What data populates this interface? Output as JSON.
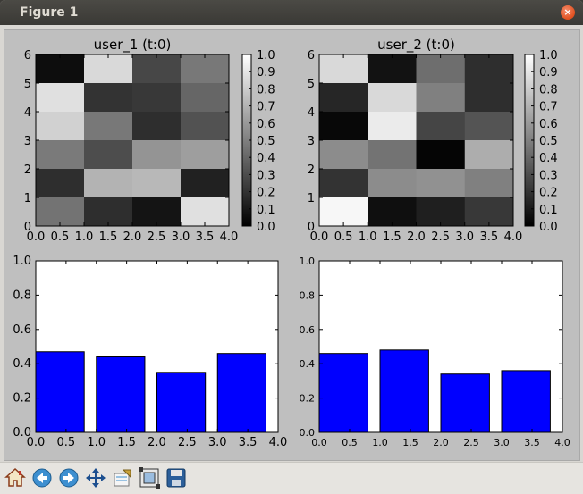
{
  "window": {
    "title": "Figure 1",
    "close_label": "×"
  },
  "toolbar": {
    "buttons": [
      {
        "name": "home-icon"
      },
      {
        "name": "back-icon"
      },
      {
        "name": "forward-icon"
      },
      {
        "name": "pan-icon"
      },
      {
        "name": "configure-subplots-icon"
      },
      {
        "name": "zoom-rect-icon"
      },
      {
        "name": "save-icon"
      }
    ]
  },
  "chart_data": [
    {
      "type": "heatmap",
      "title": "user_1 (t:0)",
      "x_edges": [
        0,
        1,
        2,
        3,
        4
      ],
      "y_edges": [
        0,
        1,
        2,
        3,
        4,
        5,
        6
      ],
      "xticks": [
        "0.0",
        "0.5",
        "1.0",
        "1.5",
        "2.0",
        "2.5",
        "3.0",
        "3.5",
        "4.0"
      ],
      "yticks": [
        "0",
        "1",
        "2",
        "3",
        "4",
        "5",
        "6"
      ],
      "colormap": "gray",
      "rows_top_to_bottom": [
        [
          0.05,
          0.85,
          0.28,
          0.47
        ],
        [
          0.88,
          0.2,
          0.22,
          0.4
        ],
        [
          0.82,
          0.47,
          0.18,
          0.32
        ],
        [
          0.48,
          0.3,
          0.58,
          0.62
        ],
        [
          0.18,
          0.7,
          0.72,
          0.13
        ],
        [
          0.45,
          0.18,
          0.08,
          0.88
        ]
      ],
      "colorbar_ticks": [
        "0.0",
        "0.1",
        "0.2",
        "0.3",
        "0.4",
        "0.5",
        "0.6",
        "0.7",
        "0.8",
        "0.9",
        "1.0"
      ]
    },
    {
      "type": "heatmap",
      "title": "user_2 (t:0)",
      "x_edges": [
        0,
        1,
        2,
        3,
        4
      ],
      "y_edges": [
        0,
        1,
        2,
        3,
        4,
        5,
        6
      ],
      "xticks": [
        "0.0",
        "0.5",
        "1.0",
        "1.5",
        "2.0",
        "2.5",
        "3.0",
        "3.5",
        "4.0"
      ],
      "yticks": [
        "0",
        "1",
        "2",
        "3",
        "4",
        "5",
        "6"
      ],
      "colormap": "gray",
      "rows_top_to_bottom": [
        [
          0.85,
          0.07,
          0.43,
          0.18
        ],
        [
          0.15,
          0.85,
          0.5,
          0.18
        ],
        [
          0.03,
          0.92,
          0.27,
          0.33
        ],
        [
          0.55,
          0.45,
          0.02,
          0.68
        ],
        [
          0.2,
          0.55,
          0.57,
          0.5
        ],
        [
          0.97,
          0.06,
          0.12,
          0.22
        ]
      ],
      "colorbar_ticks": [
        "0.0",
        "0.1",
        "0.2",
        "0.3",
        "0.4",
        "0.5",
        "0.6",
        "0.7",
        "0.8",
        "0.9",
        "1.0"
      ]
    },
    {
      "type": "bar",
      "bar_left_edges": [
        0.0,
        1.0,
        2.0,
        3.0
      ],
      "bar_width": 0.8,
      "values": [
        0.47,
        0.44,
        0.35,
        0.46
      ],
      "xlim": [
        0,
        4
      ],
      "ylim": [
        0,
        1.0
      ],
      "xticks": [
        "0.0",
        "0.5",
        "1.0",
        "1.5",
        "2.0",
        "2.5",
        "3.0",
        "3.5",
        "4.0"
      ],
      "yticks": [
        "0.0",
        "0.2",
        "0.4",
        "0.6",
        "0.8",
        "1.0"
      ],
      "color": "#0000ff"
    },
    {
      "type": "bar",
      "bar_left_edges": [
        0.0,
        1.0,
        2.0,
        3.0
      ],
      "bar_width": 0.8,
      "values": [
        0.46,
        0.48,
        0.34,
        0.36
      ],
      "xlim": [
        0,
        4
      ],
      "ylim": [
        0,
        1.0
      ],
      "xticks": [
        "0.0",
        "0.5",
        "1.0",
        "1.5",
        "2.0",
        "2.5",
        "3.0",
        "3.5",
        "4.0"
      ],
      "yticks": [
        "0.0",
        "0.2",
        "0.4",
        "0.6",
        "0.8",
        "1.0"
      ],
      "color": "#0000ff"
    }
  ]
}
